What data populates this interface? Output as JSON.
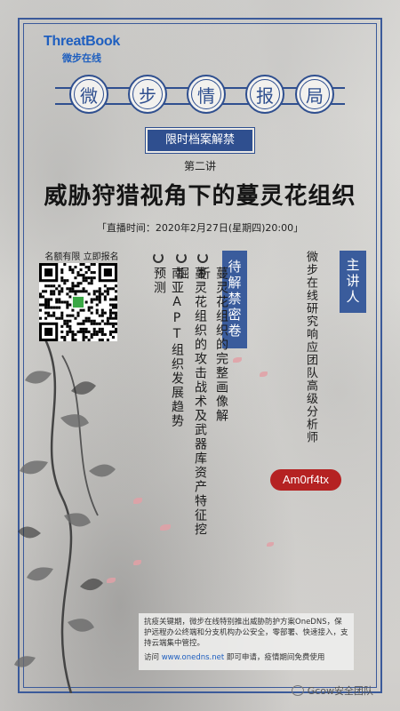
{
  "brand": {
    "name_en": "ThreatBook",
    "name_cn": "微步在线"
  },
  "title_chars": [
    "微",
    "步",
    "情",
    "报",
    "局"
  ],
  "tag_label": "限时档案解禁",
  "lecture_no": "第二讲",
  "headline": "威胁狩猎视角下的蔓灵花组织",
  "airtime": "「直播时间：2020年2月27日(星期四)20:00」",
  "qr_label": "名额有限 立即报名",
  "topics_tag": "待解禁密卷",
  "topics": [
    "蔓灵花组织的完整画像解析",
    "蔓灵花组织的攻击战术及武器库资产特征挖掘",
    "南亚APT组织发展趋势预测"
  ],
  "speaker_tag": "主讲人",
  "speaker_title": "微步在线研究响应团队高级分析师",
  "speaker_name": "Am0rf4tx",
  "notice": {
    "text": "抗疫关键期，微步在线特别推出威胁防护方案OneDNS，保护远程办公终端和分支机构办公安全，零部署、快速接入，支持云端集中管控。",
    "visit_prefix": "访问",
    "url": "www.onedns.net",
    "visit_suffix": "即可申请，疫情期间免费使用"
  },
  "wechat_label": "Gcow安全团队",
  "colors": {
    "accent": "#2f4f8f",
    "brand": "#1f5fbf",
    "speaker_badge": "#b52222",
    "petal": "#e2a0a6"
  }
}
